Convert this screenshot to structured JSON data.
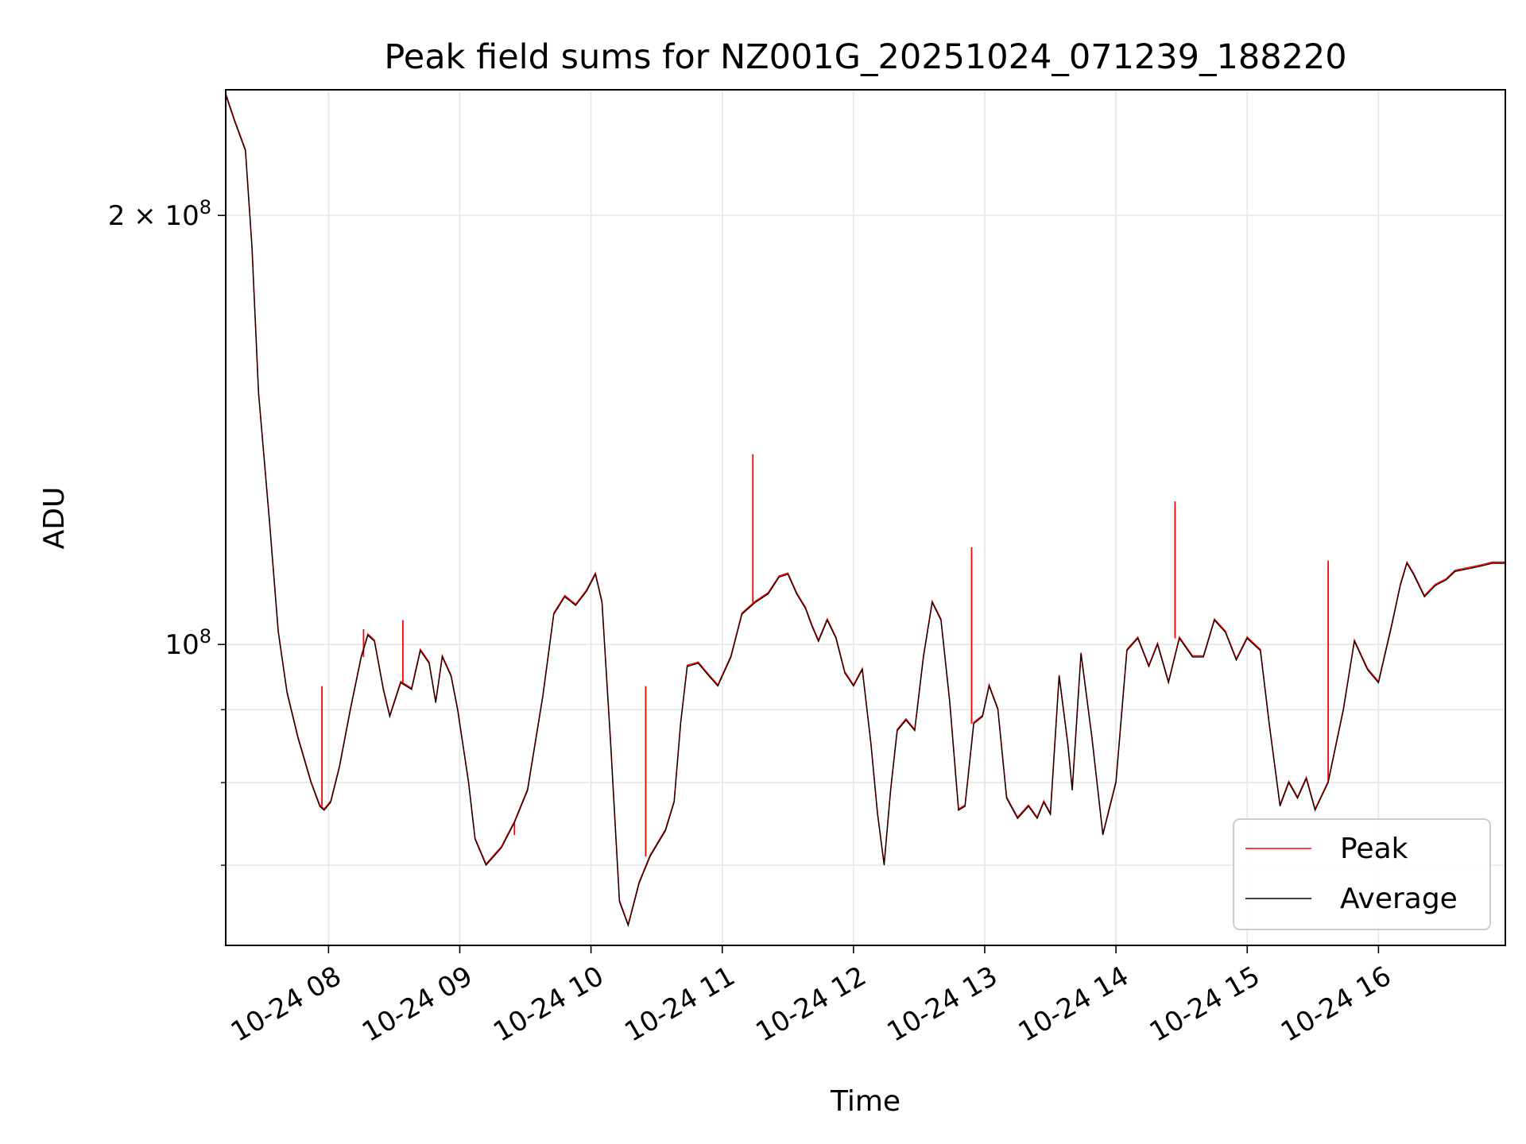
{
  "chart_data": {
    "type": "line",
    "title": "Peak field sums for NZ001G_20251024_071239_188220",
    "xlabel": "Time",
    "ylabel": "ADU",
    "y_scale": "log",
    "ylim": [
      61500000,
      245000000
    ],
    "xlim": [
      "2025-10-24 07:13",
      "2025-10-24 16:58"
    ],
    "grid": true,
    "legend_position": "lower-right",
    "x_ticks": [
      {
        "time": "2025-10-24 08:00",
        "label": "10-24 08"
      },
      {
        "time": "2025-10-24 09:00",
        "label": "10-24 09"
      },
      {
        "time": "2025-10-24 10:00",
        "label": "10-24 10"
      },
      {
        "time": "2025-10-24 11:00",
        "label": "10-24 11"
      },
      {
        "time": "2025-10-24 12:00",
        "label": "10-24 12"
      },
      {
        "time": "2025-10-24 13:00",
        "label": "10-24 13"
      },
      {
        "time": "2025-10-24 14:00",
        "label": "10-24 14"
      },
      {
        "time": "2025-10-24 15:00",
        "label": "10-24 15"
      },
      {
        "time": "2025-10-24 16:00",
        "label": "10-24 16"
      }
    ],
    "y_major_ticks": [
      {
        "value": 100000000,
        "base": "10",
        "exp": "8",
        "mult": ""
      },
      {
        "value": 200000000,
        "base": "10",
        "exp": "8",
        "mult": "2 × "
      }
    ],
    "y_minor_ticks": [
      70000000,
      80000000,
      90000000
    ],
    "series": [
      {
        "name": "Average",
        "color": "#000000",
        "points": [
          [
            "2025-10-24 07:13",
            243000000
          ],
          [
            "2025-10-24 07:17",
            233000000
          ],
          [
            "2025-10-24 07:22",
            222000000
          ],
          [
            "2025-10-24 07:25",
            190000000
          ],
          [
            "2025-10-24 07:28",
            150000000
          ],
          [
            "2025-10-24 07:33",
            122000000
          ],
          [
            "2025-10-24 07:37",
            102000000
          ],
          [
            "2025-10-24 07:41",
            92500000
          ],
          [
            "2025-10-24 07:46",
            86000000
          ],
          [
            "2025-10-24 07:52",
            80000000
          ],
          [
            "2025-10-24 07:56",
            77000000
          ],
          [
            "2025-10-24 07:58",
            76500000
          ],
          [
            "2025-10-24 08:01",
            77500000
          ],
          [
            "2025-10-24 08:05",
            82000000
          ],
          [
            "2025-10-24 08:10",
            90000000
          ],
          [
            "2025-10-24 08:15",
            98000000
          ],
          [
            "2025-10-24 08:18",
            101500000
          ],
          [
            "2025-10-24 08:21",
            100500000
          ],
          [
            "2025-10-24 08:25",
            93000000
          ],
          [
            "2025-10-24 08:28",
            89000000
          ],
          [
            "2025-10-24 08:33",
            94000000
          ],
          [
            "2025-10-24 08:38",
            93000000
          ],
          [
            "2025-10-24 08:42",
            99000000
          ],
          [
            "2025-10-24 08:46",
            97000000
          ],
          [
            "2025-10-24 08:49",
            91000000
          ],
          [
            "2025-10-24 08:52",
            98000000
          ],
          [
            "2025-10-24 08:56",
            95000000
          ],
          [
            "2025-10-24 08:59",
            90000000
          ],
          [
            "2025-10-24 09:04",
            80000000
          ],
          [
            "2025-10-24 09:07",
            73000000
          ],
          [
            "2025-10-24 09:12",
            70000000
          ],
          [
            "2025-10-24 09:19",
            72000000
          ],
          [
            "2025-10-24 09:25",
            75000000
          ],
          [
            "2025-10-24 09:31",
            79000000
          ],
          [
            "2025-10-24 09:38",
            92000000
          ],
          [
            "2025-10-24 09:43",
            105000000
          ],
          [
            "2025-10-24 09:48",
            108000000
          ],
          [
            "2025-10-24 09:53",
            106500000
          ],
          [
            "2025-10-24 09:58",
            109000000
          ],
          [
            "2025-10-24 10:02",
            112000000
          ],
          [
            "2025-10-24 10:05",
            107000000
          ],
          [
            "2025-10-24 10:09",
            85000000
          ],
          [
            "2025-10-24 10:13",
            66000000
          ],
          [
            "2025-10-24 10:17",
            63500000
          ],
          [
            "2025-10-24 10:22",
            68000000
          ],
          [
            "2025-10-24 10:27",
            71000000
          ],
          [
            "2025-10-24 10:34",
            74000000
          ],
          [
            "2025-10-24 10:38",
            77500000
          ],
          [
            "2025-10-24 10:41",
            88000000
          ],
          [
            "2025-10-24 10:44",
            96500000
          ],
          [
            "2025-10-24 10:49",
            97000000
          ],
          [
            "2025-10-24 10:54",
            95000000
          ],
          [
            "2025-10-24 10:58",
            93500000
          ],
          [
            "2025-10-24 11:04",
            98000000
          ],
          [
            "2025-10-24 11:09",
            105000000
          ],
          [
            "2025-10-24 11:15",
            107000000
          ],
          [
            "2025-10-24 11:21",
            108500000
          ],
          [
            "2025-10-24 11:26",
            111500000
          ],
          [
            "2025-10-24 11:30",
            112000000
          ],
          [
            "2025-10-24 11:34",
            108500000
          ],
          [
            "2025-10-24 11:38",
            106000000
          ],
          [
            "2025-10-24 11:41",
            103000000
          ],
          [
            "2025-10-24 11:44",
            100500000
          ],
          [
            "2025-10-24 11:48",
            104000000
          ],
          [
            "2025-10-24 11:52",
            101000000
          ],
          [
            "2025-10-24 11:56",
            95500000
          ],
          [
            "2025-10-24 12:00",
            93500000
          ],
          [
            "2025-10-24 12:04",
            96000000
          ],
          [
            "2025-10-24 12:08",
            85000000
          ],
          [
            "2025-10-24 12:11",
            76000000
          ],
          [
            "2025-10-24 12:14",
            70000000
          ],
          [
            "2025-10-24 12:17",
            79000000
          ],
          [
            "2025-10-24 12:20",
            87000000
          ],
          [
            "2025-10-24 12:24",
            88500000
          ],
          [
            "2025-10-24 12:28",
            87000000
          ],
          [
            "2025-10-24 12:32",
            98000000
          ],
          [
            "2025-10-24 12:36",
            107000000
          ],
          [
            "2025-10-24 12:40",
            104000000
          ],
          [
            "2025-10-24 12:44",
            91000000
          ],
          [
            "2025-10-24 12:48",
            76500000
          ],
          [
            "2025-10-24 12:51",
            77000000
          ],
          [
            "2025-10-24 12:55",
            88000000
          ],
          [
            "2025-10-24 12:59",
            89000000
          ],
          [
            "2025-10-24 13:02",
            93500000
          ],
          [
            "2025-10-24 13:06",
            90000000
          ],
          [
            "2025-10-24 13:10",
            78000000
          ],
          [
            "2025-10-24 13:15",
            75500000
          ],
          [
            "2025-10-24 13:20",
            77000000
          ],
          [
            "2025-10-24 13:24",
            75500000
          ],
          [
            "2025-10-24 13:27",
            77500000
          ],
          [
            "2025-10-24 13:30",
            76000000
          ],
          [
            "2025-10-24 13:34",
            95000000
          ],
          [
            "2025-10-24 13:38",
            85000000
          ],
          [
            "2025-10-24 13:40",
            79000000
          ],
          [
            "2025-10-24 13:44",
            98500000
          ],
          [
            "2025-10-24 13:49",
            86000000
          ],
          [
            "2025-10-24 13:54",
            73500000
          ],
          [
            "2025-10-24 14:00",
            80000000
          ],
          [
            "2025-10-24 14:05",
            99000000
          ],
          [
            "2025-10-24 14:10",
            101000000
          ],
          [
            "2025-10-24 14:15",
            96500000
          ],
          [
            "2025-10-24 14:19",
            100000000
          ],
          [
            "2025-10-24 14:24",
            94000000
          ],
          [
            "2025-10-24 14:29",
            101000000
          ],
          [
            "2025-10-24 14:35",
            98000000
          ],
          [
            "2025-10-24 14:40",
            98000000
          ],
          [
            "2025-10-24 14:45",
            104000000
          ],
          [
            "2025-10-24 14:50",
            102000000
          ],
          [
            "2025-10-24 14:55",
            97500000
          ],
          [
            "2025-10-24 15:00",
            101000000
          ],
          [
            "2025-10-24 15:06",
            99000000
          ],
          [
            "2025-10-24 15:10",
            88000000
          ],
          [
            "2025-10-24 15:15",
            77000000
          ],
          [
            "2025-10-24 15:19",
            80000000
          ],
          [
            "2025-10-24 15:23",
            78000000
          ],
          [
            "2025-10-24 15:27",
            80500000
          ],
          [
            "2025-10-24 15:31",
            76500000
          ],
          [
            "2025-10-24 15:37",
            80000000
          ],
          [
            "2025-10-24 15:44",
            90000000
          ],
          [
            "2025-10-24 15:49",
            100500000
          ],
          [
            "2025-10-24 15:55",
            96000000
          ],
          [
            "2025-10-24 16:00",
            94000000
          ],
          [
            "2025-10-24 16:06",
            103000000
          ],
          [
            "2025-10-24 16:10",
            110000000
          ],
          [
            "2025-10-24 16:13",
            114000000
          ],
          [
            "2025-10-24 16:16",
            112000000
          ],
          [
            "2025-10-24 16:21",
            108000000
          ],
          [
            "2025-10-24 16:26",
            110000000
          ],
          [
            "2025-10-24 16:31",
            111000000
          ],
          [
            "2025-10-24 16:35",
            112500000
          ],
          [
            "2025-10-24 16:41",
            113000000
          ],
          [
            "2025-10-24 16:47",
            113500000
          ],
          [
            "2025-10-24 16:52",
            114000000
          ],
          [
            "2025-10-24 16:58",
            114000000
          ]
        ]
      },
      {
        "name": "Peak",
        "color": "#ff0000",
        "spikes": [
          [
            "2025-10-24 07:57",
            93500000
          ],
          [
            "2025-10-24 08:16",
            102500000
          ],
          [
            "2025-10-24 08:34",
            104000000
          ],
          [
            "2025-10-24 09:25",
            73500000
          ],
          [
            "2025-10-24 10:25",
            93500000
          ],
          [
            "2025-10-24 11:14",
            136000000
          ],
          [
            "2025-10-24 12:54",
            117000000
          ],
          [
            "2025-10-24 14:27",
            126000000
          ],
          [
            "2025-10-24 15:37",
            114500000
          ]
        ]
      }
    ]
  }
}
